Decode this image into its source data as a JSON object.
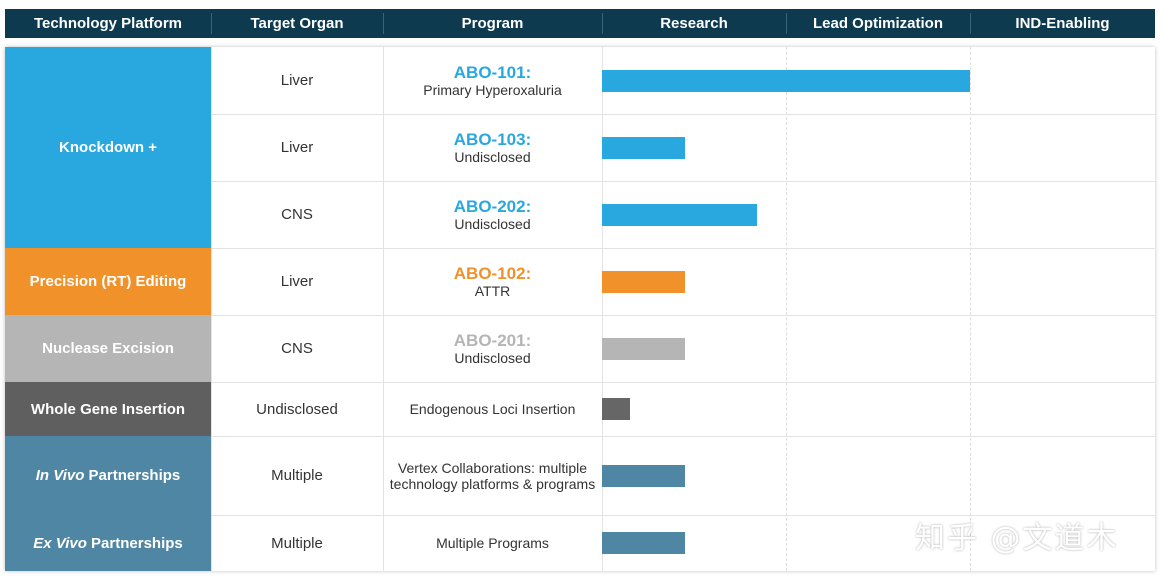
{
  "chart_data": {
    "type": "bar",
    "orientation": "horizontal",
    "columns": [
      "Technology Platform",
      "Target Organ",
      "Program",
      "Research",
      "Lead Optimization",
      "IND-Enabling"
    ],
    "stages": [
      "Research",
      "Lead Optimization",
      "IND-Enabling"
    ],
    "xlim": [
      0,
      3
    ],
    "rows": [
      {
        "platform": "Knockdown +",
        "organ": "Liver",
        "program_name": "ABO-101:",
        "program_desc": "Primary Hyperoxaluria",
        "value": 2.0,
        "color": "#29a8e0"
      },
      {
        "platform": "Knockdown +",
        "organ": "Liver",
        "program_name": "ABO-103:",
        "program_desc": "Undisclosed",
        "value": 0.45,
        "color": "#29a8e0"
      },
      {
        "platform": "Knockdown +",
        "organ": "CNS",
        "program_name": "ABO-202:",
        "program_desc": "Undisclosed",
        "value": 0.84,
        "color": "#29a8e0"
      },
      {
        "platform": "Precision (RT) Editing",
        "organ": "Liver",
        "program_name": "ABO-102:",
        "program_desc": "ATTR",
        "value": 0.45,
        "color": "#f0912a"
      },
      {
        "platform": "Nuclease Excision",
        "organ": "CNS",
        "program_name": "ABO-201:",
        "program_desc": "Undisclosed",
        "value": 0.45,
        "color": "#b5b5b5"
      },
      {
        "platform": "Whole Gene Insertion",
        "organ": "Undisclosed",
        "program_name": "",
        "program_desc": "Endogenous Loci Insertion",
        "value": 0.15,
        "color": "#666666"
      },
      {
        "platform": "In Vivo Partnerships",
        "organ": "Multiple",
        "program_name": "",
        "program_desc": "Vertex Collaborations: multiple technology platforms & programs",
        "value": 0.45,
        "color": "#4f86a4"
      },
      {
        "platform": "Ex Vivo Partnerships",
        "organ": "Multiple",
        "program_name": "",
        "program_desc": "Multiple Programs",
        "value": 0.45,
        "color": "#4f86a4"
      }
    ],
    "platforms": [
      {
        "label": "Knockdown +",
        "italic": "",
        "rest": "Knockdown +",
        "color": "#29a8e0"
      },
      {
        "label": "Precision (RT) Editing",
        "italic": "",
        "rest": "Precision (RT) Editing",
        "color": "#f0912a"
      },
      {
        "label": "Nuclease Excision",
        "italic": "",
        "rest": "Nuclease Excision",
        "color": "#b5b5b5"
      },
      {
        "label": "Whole Gene Insertion",
        "italic": "",
        "rest": "Whole Gene Insertion",
        "color": "#5f5f5f"
      },
      {
        "label": "In Vivo Partnerships",
        "italic": "In Vivo",
        "rest": " Partnerships",
        "color": "#4f86a4"
      },
      {
        "label": "Ex Vivo Partnerships",
        "italic": "Ex Vivo",
        "rest": " Partnerships",
        "color": "#4f86a4"
      }
    ]
  },
  "watermark": "知乎 @文道木"
}
